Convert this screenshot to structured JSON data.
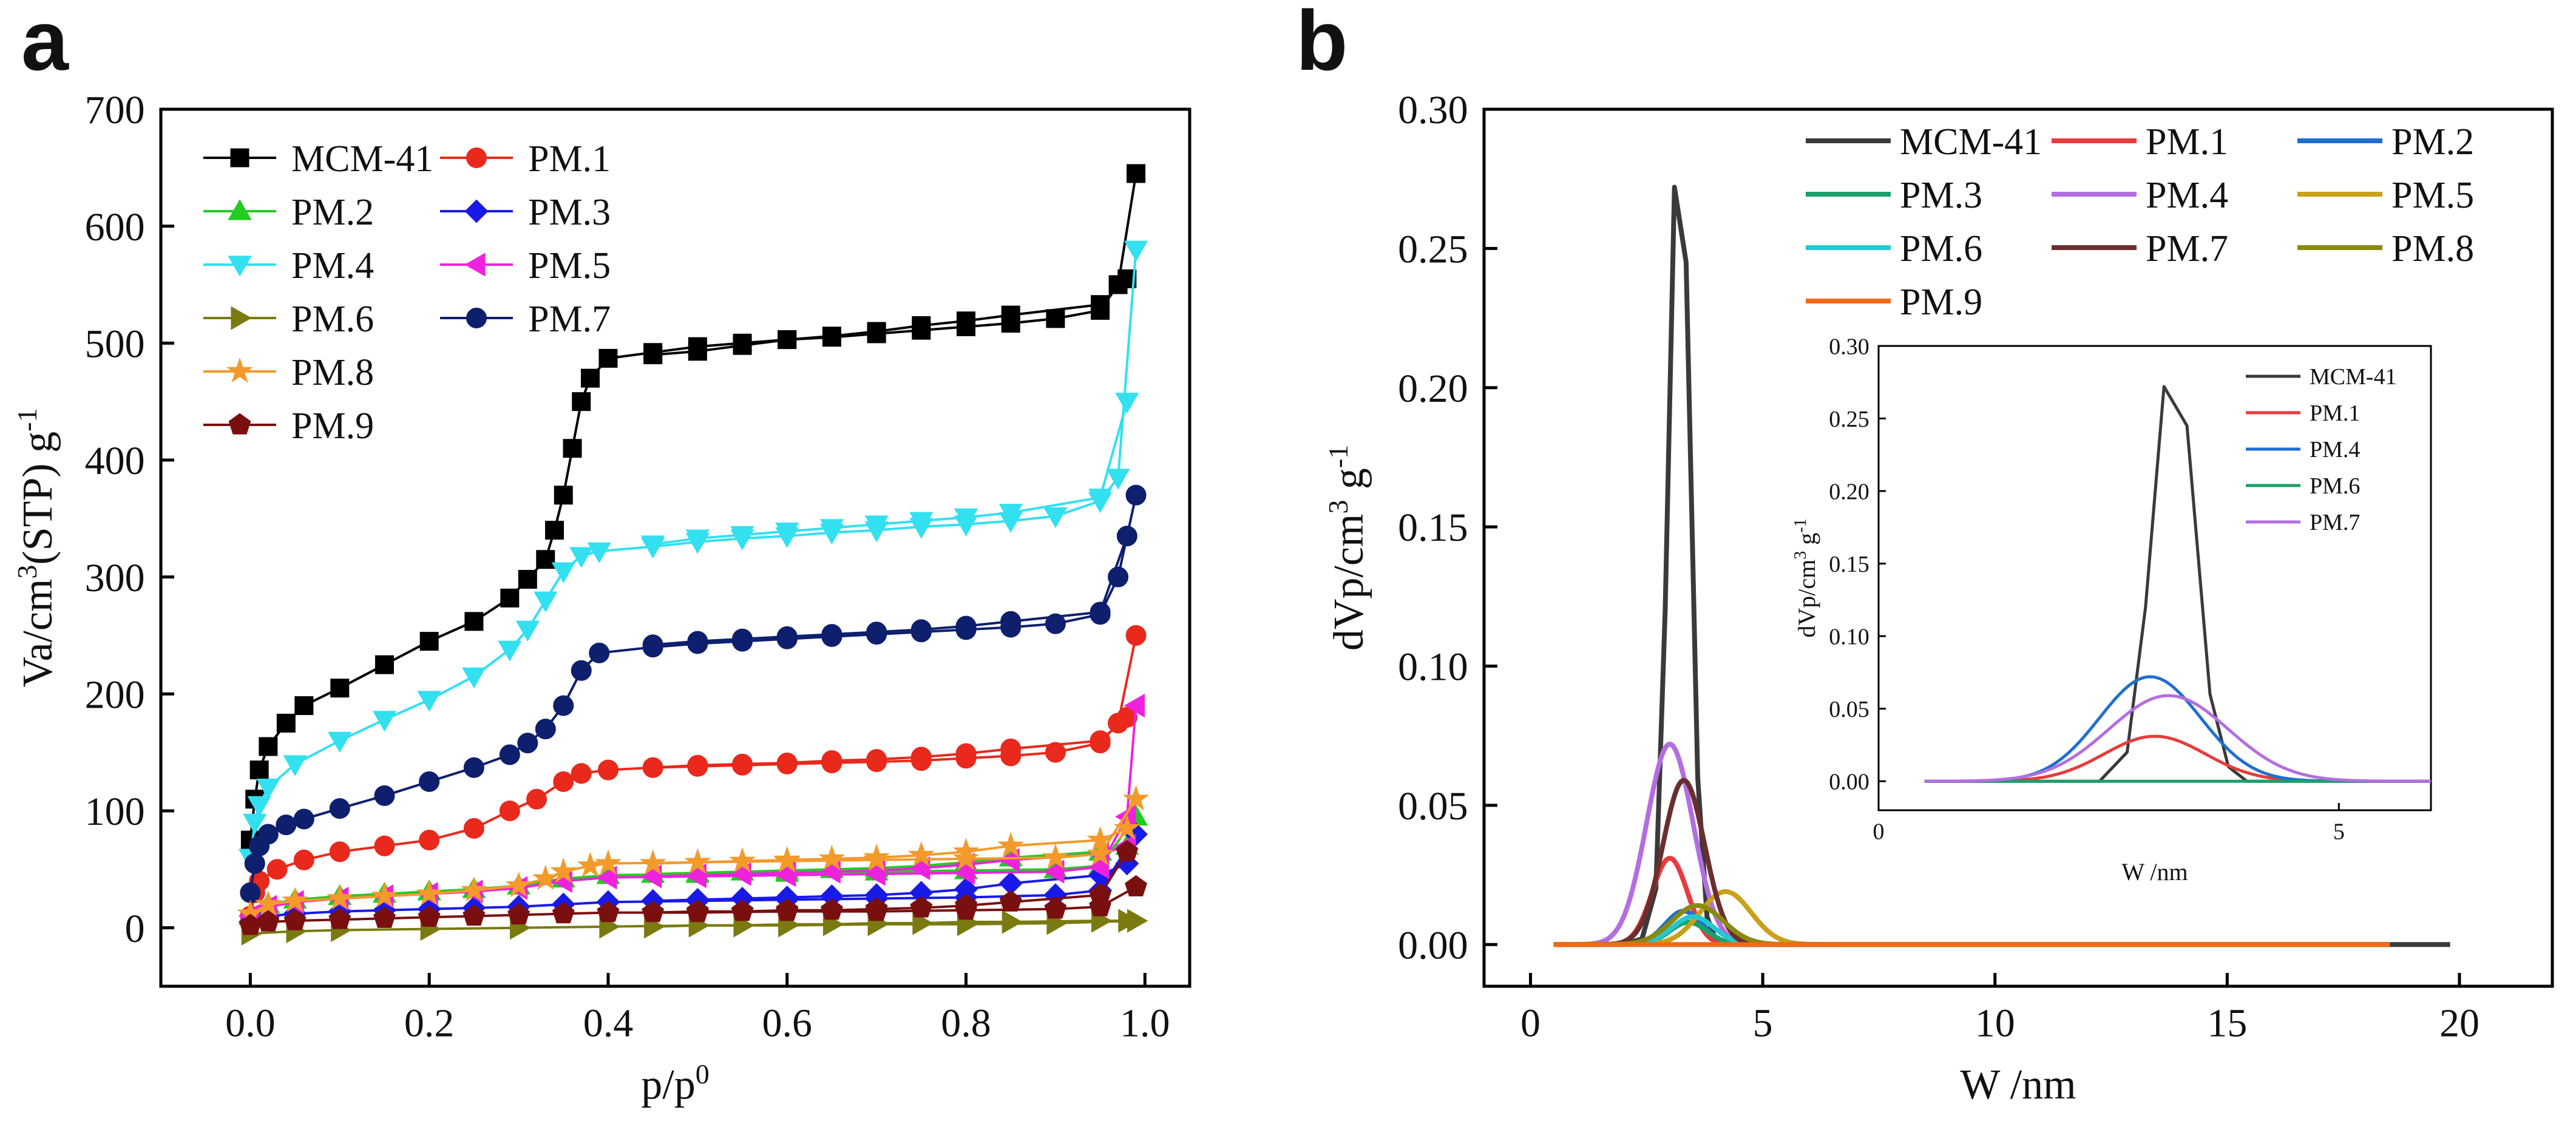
{
  "panel_a": {
    "letter": "a",
    "chart_data": {
      "type": "line",
      "xlabel": "p/p0",
      "ylabel": "Va/cm3(STP) g-1",
      "xlim": [
        -0.1,
        1.05
      ],
      "ylim": [
        -50,
        700
      ],
      "xticks": [
        "0.0",
        "0.2",
        "0.4",
        "0.6",
        "0.8",
        "1.0"
      ],
      "yticks": [
        "0",
        "100",
        "200",
        "300",
        "400",
        "500",
        "600",
        "700"
      ],
      "legend_position": "top-left",
      "series": [
        {
          "name": "MCM-41",
          "color": "#000000",
          "marker": "square",
          "x": [
            0.0,
            0.005,
            0.01,
            0.02,
            0.04,
            0.06,
            0.1,
            0.15,
            0.2,
            0.25,
            0.29,
            0.31,
            0.33,
            0.34,
            0.35,
            0.36,
            0.37,
            0.38,
            0.4,
            0.45,
            0.5,
            0.55,
            0.6,
            0.65,
            0.7,
            0.75,
            0.8,
            0.85,
            0.9,
            0.95,
            0.97,
            0.99
          ],
          "y": [
            75,
            110,
            135,
            155,
            175,
            190,
            205,
            225,
            245,
            262,
            282,
            298,
            315,
            340,
            370,
            410,
            450,
            470,
            487,
            492,
            497,
            500,
            503,
            505,
            508,
            511,
            514,
            517,
            521,
            528,
            550,
            645
          ],
          "des_y": [
            490,
            493,
            498,
            503,
            506,
            510,
            515,
            519,
            524,
            533,
            555
          ]
        },
        {
          "name": "PM.1",
          "color": "#e8291c",
          "marker": "circle",
          "x": [
            0.0,
            0.005,
            0.01,
            0.03,
            0.06,
            0.1,
            0.15,
            0.2,
            0.25,
            0.29,
            0.32,
            0.35,
            0.37,
            0.4,
            0.45,
            0.5,
            0.55,
            0.6,
            0.65,
            0.7,
            0.75,
            0.8,
            0.85,
            0.9,
            0.95,
            0.97,
            0.99
          ],
          "y": [
            10,
            30,
            40,
            50,
            58,
            65,
            70,
            75,
            85,
            100,
            110,
            125,
            132,
            135,
            137,
            138,
            139,
            140,
            141,
            142,
            143,
            145,
            147,
            150,
            158,
            175,
            250
          ],
          "des_y": [
            137,
            139,
            140,
            141,
            143,
            144,
            146,
            149,
            153,
            160,
            180
          ]
        },
        {
          "name": "PM.2",
          "color": "#22cc22",
          "marker": "triangle-up",
          "x": [
            0.0,
            0.02,
            0.05,
            0.1,
            0.15,
            0.2,
            0.25,
            0.3,
            0.35,
            0.4,
            0.5,
            0.6,
            0.7,
            0.8,
            0.9,
            0.95,
            0.99
          ],
          "y": [
            10,
            20,
            24,
            27,
            29,
            31,
            33,
            36,
            42,
            45,
            46,
            47,
            48,
            49,
            50,
            53,
            95
          ],
          "des_y": [
            46,
            47,
            48,
            49,
            50,
            51,
            53,
            56,
            60,
            65,
            70
          ]
        },
        {
          "name": "PM.3",
          "color": "#1a1ae8",
          "marker": "diamond",
          "x": [
            0.0,
            0.02,
            0.05,
            0.1,
            0.15,
            0.2,
            0.25,
            0.3,
            0.35,
            0.4,
            0.5,
            0.6,
            0.7,
            0.8,
            0.9,
            0.95,
            0.99
          ],
          "y": [
            5,
            10,
            12,
            14,
            15,
            16,
            17,
            18,
            20,
            22,
            23,
            24,
            25,
            26,
            28,
            32,
            80
          ],
          "des_y": [
            23,
            24,
            25,
            26,
            27,
            28,
            30,
            33,
            38,
            45,
            55
          ]
        },
        {
          "name": "PM.4",
          "color": "#33e0f0",
          "marker": "triangle-down",
          "x": [
            0.0,
            0.005,
            0.01,
            0.02,
            0.05,
            0.1,
            0.15,
            0.2,
            0.25,
            0.29,
            0.31,
            0.33,
            0.35,
            0.37,
            0.39,
            0.45,
            0.5,
            0.55,
            0.6,
            0.65,
            0.7,
            0.75,
            0.8,
            0.85,
            0.9,
            0.95,
            0.97,
            0.99
          ],
          "y": [
            60,
            90,
            105,
            120,
            140,
            160,
            178,
            195,
            215,
            238,
            255,
            280,
            305,
            318,
            322,
            326,
            330,
            333,
            335,
            338,
            340,
            343,
            345,
            348,
            352,
            365,
            385,
            580
          ],
          "des_y": [
            328,
            333,
            336,
            339,
            342,
            345,
            348,
            351,
            355,
            368,
            450
          ]
        },
        {
          "name": "PM.5",
          "color": "#ee22dd",
          "marker": "triangle-left",
          "x": [
            0.0,
            0.02,
            0.05,
            0.1,
            0.15,
            0.2,
            0.25,
            0.3,
            0.35,
            0.4,
            0.5,
            0.6,
            0.7,
            0.8,
            0.9,
            0.95,
            0.98,
            0.99
          ],
          "y": [
            10,
            18,
            22,
            25,
            27,
            29,
            31,
            34,
            40,
            43,
            44,
            45,
            46,
            47,
            48,
            52,
            95,
            190
          ],
          "des_y": [
            44,
            45,
            46,
            47,
            48,
            49,
            51,
            54,
            58,
            63,
            70
          ]
        },
        {
          "name": "PM.6",
          "color": "#7a7a10",
          "marker": "triangle-right",
          "x": [
            0.0,
            0.05,
            0.1,
            0.2,
            0.3,
            0.4,
            0.5,
            0.6,
            0.7,
            0.8,
            0.9,
            0.99
          ],
          "y": [
            -5,
            -3,
            -2,
            -1,
            0,
            1,
            2,
            2,
            3,
            3,
            4,
            6
          ],
          "des_y": [
            1,
            2,
            2,
            3,
            3,
            4,
            4,
            5,
            5,
            6,
            6
          ]
        },
        {
          "name": "PM.7",
          "color": "#0e1f6e",
          "marker": "circle",
          "x": [
            0.0,
            0.005,
            0.01,
            0.02,
            0.04,
            0.06,
            0.1,
            0.15,
            0.2,
            0.25,
            0.29,
            0.31,
            0.33,
            0.35,
            0.37,
            0.39,
            0.45,
            0.5,
            0.55,
            0.6,
            0.65,
            0.7,
            0.75,
            0.8,
            0.85,
            0.9,
            0.95,
            0.97,
            0.99
          ],
          "y": [
            30,
            55,
            70,
            80,
            88,
            93,
            102,
            113,
            125,
            137,
            148,
            158,
            170,
            190,
            220,
            235,
            240,
            243,
            245,
            247,
            249,
            251,
            253,
            255,
            257,
            260,
            268,
            300,
            370
          ],
          "des_y": [
            242,
            245,
            247,
            249,
            251,
            253,
            255,
            258,
            262,
            270,
            335
          ]
        },
        {
          "name": "PM.8",
          "color": "#f39a2a",
          "marker": "star",
          "x": [
            0.0,
            0.02,
            0.05,
            0.1,
            0.15,
            0.2,
            0.25,
            0.3,
            0.33,
            0.35,
            0.38,
            0.4,
            0.5,
            0.6,
            0.7,
            0.8,
            0.9,
            0.95,
            0.99
          ],
          "y": [
            12,
            20,
            23,
            25,
            27,
            29,
            32,
            36,
            42,
            48,
            53,
            55,
            56,
            57,
            58,
            59,
            60,
            63,
            110
          ],
          "des_y": [
            55,
            56,
            57,
            58,
            59,
            60,
            62,
            65,
            70,
            75,
            85
          ]
        },
        {
          "name": "PM.9",
          "color": "#7a0f0f",
          "marker": "pentagon",
          "x": [
            0.0,
            0.02,
            0.05,
            0.1,
            0.15,
            0.2,
            0.25,
            0.3,
            0.35,
            0.4,
            0.5,
            0.6,
            0.7,
            0.8,
            0.9,
            0.95,
            0.99
          ],
          "y": [
            2,
            5,
            6,
            7,
            8,
            9,
            10,
            11,
            12,
            13,
            13,
            14,
            14,
            15,
            16,
            18,
            35
          ],
          "des_y": [
            13,
            14,
            14,
            15,
            15,
            16,
            17,
            19,
            22,
            28,
            65
          ]
        }
      ]
    }
  },
  "panel_b": {
    "letter": "b",
    "chart_data": {
      "type": "line",
      "xlabel": "W /nm",
      "ylabel": "dVp/cm3 g-1",
      "xlim": [
        -1,
        22
      ],
      "ylim": [
        -0.015,
        0.3
      ],
      "xticks": [
        "0",
        "5",
        "10",
        "15",
        "20"
      ],
      "yticks": [
        "0.00",
        "0.05",
        "0.10",
        "0.15",
        "0.20",
        "0.25",
        "0.30"
      ],
      "legend_position": "top-right",
      "series": [
        {
          "name": "MCM-41",
          "color": "#3a3a3a",
          "x_end": 19.8,
          "peaks": [
            {
              "type": "points",
              "x": [
                0.5,
                2.0,
                2.4,
                2.7,
                2.9,
                3.1,
                3.35,
                3.6,
                3.8,
                4.0,
                4.3
              ],
              "y": [
                0,
                0,
                0.002,
                0.02,
                0.12,
                0.272,
                0.245,
                0.06,
                0.01,
                0.001,
                0
              ]
            }
          ]
        },
        {
          "name": "PM.1",
          "color": "#e83b3b",
          "x_end": 18.5,
          "peaks": [
            {
              "type": "gauss",
              "center": 3.0,
              "height": 0.031,
              "sigma": 0.38
            }
          ]
        },
        {
          "name": "PM.2",
          "color": "#1f6fd0",
          "x_end": 18.5,
          "peaks": [
            {
              "type": "gauss",
              "center": 3.3,
              "height": 0.012,
              "sigma": 0.4
            }
          ]
        },
        {
          "name": "PM.3",
          "color": "#1aa06a",
          "x_end": 18.5,
          "peaks": [
            {
              "type": "gauss",
              "center": 3.4,
              "height": 0.008,
              "sigma": 0.4
            }
          ]
        },
        {
          "name": "PM.4",
          "color": "#b36ee0",
          "x_end": 18.5,
          "peaks": [
            {
              "type": "gauss",
              "center": 3.0,
              "height": 0.072,
              "sigma": 0.5
            }
          ]
        },
        {
          "name": "PM.5",
          "color": "#c9a018",
          "x_end": 18.5,
          "peaks": [
            {
              "type": "gauss",
              "center": 4.2,
              "height": 0.019,
              "sigma": 0.55
            }
          ]
        },
        {
          "name": "PM.6",
          "color": "#22c9d1",
          "x_end": 18.5,
          "peaks": [
            {
              "type": "gauss",
              "center": 3.5,
              "height": 0.01,
              "sigma": 0.45
            }
          ]
        },
        {
          "name": "PM.7",
          "color": "#6b2e2e",
          "x_end": 18.5,
          "peaks": [
            {
              "type": "gauss",
              "center": 3.3,
              "height": 0.059,
              "sigma": 0.45
            }
          ]
        },
        {
          "name": "PM.8",
          "color": "#8a8a10",
          "x_end": 18.5,
          "peaks": [
            {
              "type": "gauss",
              "center": 3.6,
              "height": 0.014,
              "sigma": 0.55
            }
          ]
        },
        {
          "name": "PM.9",
          "color": "#f06a18",
          "x_end": 18.5,
          "peaks": [
            {
              "type": "gauss",
              "center": 3.0,
              "height": 0.0,
              "sigma": 0.5
            }
          ]
        }
      ],
      "inset": {
        "xlabel": "W /nm",
        "ylabel": "dVp/cm3 g-1",
        "xlim": [
          0,
          6
        ],
        "ylim": [
          -0.02,
          0.3
        ],
        "xticks": [
          "0",
          "5"
        ],
        "yticks": [
          "0.00",
          "0.05",
          "0.10",
          "0.15",
          "0.20",
          "0.25",
          "0.30"
        ],
        "legend_position": "top-right",
        "series": [
          {
            "name": "MCM-41",
            "color": "#3a3a3a",
            "peaks": [
              {
                "type": "points",
                "x": [
                  0.5,
                  2.4,
                  2.7,
                  2.9,
                  3.1,
                  3.35,
                  3.6,
                  3.8,
                  4.0,
                  6.0
                ],
                "y": [
                  0,
                  0,
                  0.02,
                  0.12,
                  0.272,
                  0.245,
                  0.06,
                  0.01,
                  0,
                  0
                ]
              }
            ]
          },
          {
            "name": "PM.1",
            "color": "#e83b3b",
            "peaks": [
              {
                "type": "gauss",
                "center": 3.0,
                "height": 0.031,
                "sigma": 0.55
              }
            ]
          },
          {
            "name": "PM.4",
            "color": "#1f6fd0",
            "peaks": [
              {
                "type": "gauss",
                "center": 2.95,
                "height": 0.072,
                "sigma": 0.55
              }
            ]
          },
          {
            "name": "PM.6",
            "color": "#1aa06a",
            "peaks": [
              {
                "type": "gauss",
                "center": 3.0,
                "height": 0.0,
                "sigma": 0.5
              }
            ]
          },
          {
            "name": "PM.7",
            "color": "#b36ee0",
            "peaks": [
              {
                "type": "gauss",
                "center": 3.15,
                "height": 0.059,
                "sigma": 0.65
              }
            ]
          }
        ]
      }
    }
  }
}
